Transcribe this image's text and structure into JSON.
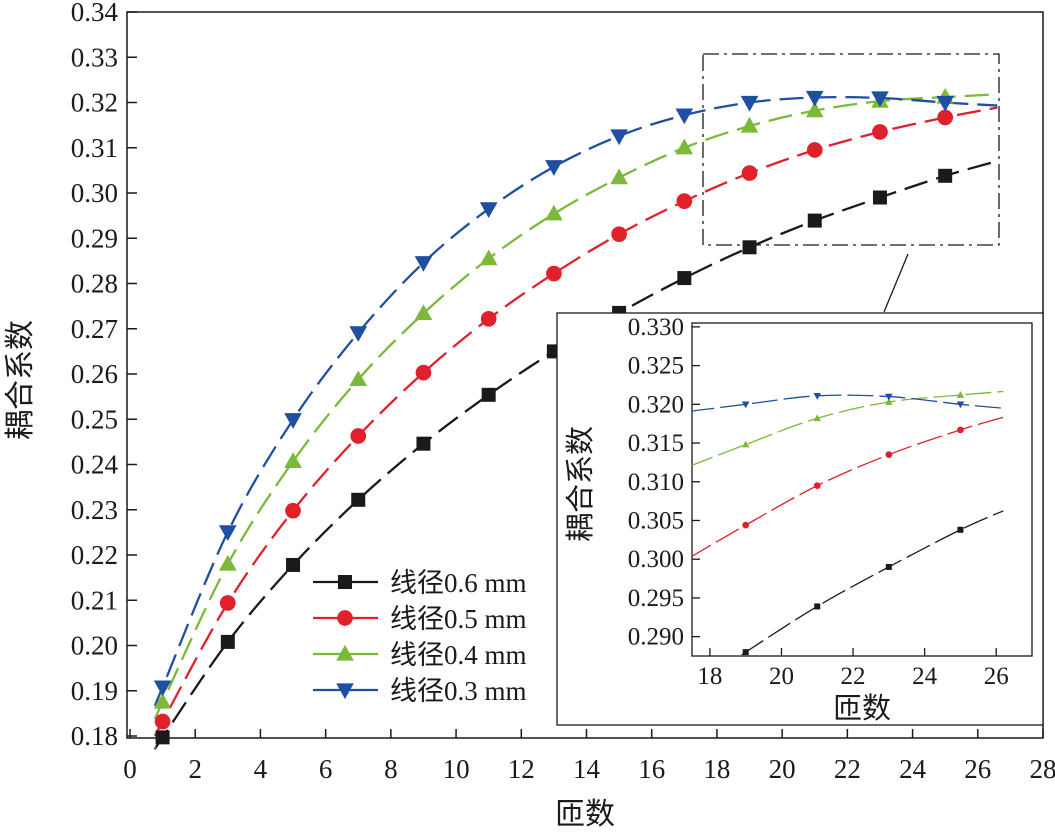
{
  "chart_data": [
    {
      "type": "line",
      "title": "",
      "xlabel": "匝数",
      "ylabel": "耦合系数",
      "xlim": [
        0,
        28
      ],
      "ylim": [
        0.18,
        0.34
      ],
      "xticks": [
        "0",
        "2",
        "4",
        "6",
        "8",
        "10",
        "12",
        "14",
        "16",
        "18",
        "20",
        "22",
        "24",
        "26",
        "28"
      ],
      "yticks": [
        "0.18",
        "0.19",
        "0.20",
        "0.21",
        "0.22",
        "0.23",
        "0.24",
        "0.25",
        "0.26",
        "0.27",
        "0.28",
        "0.29",
        "0.30",
        "0.31",
        "0.32",
        "0.33",
        "0.34"
      ],
      "legend_position": "center",
      "grid": false,
      "x": [
        1,
        3,
        5,
        7,
        9,
        11,
        13,
        15,
        17,
        19,
        21,
        23,
        25
      ],
      "series": [
        {
          "name": "线径0.6 mm",
          "color": "#1a1a1a",
          "marker": "square",
          "values": [
            0.1797,
            0.2008,
            0.2178,
            0.2322,
            0.2446,
            0.2554,
            0.265,
            0.2735,
            0.2812,
            0.288,
            0.2939,
            0.299,
            0.3038
          ]
        },
        {
          "name": "线径0.5 mm",
          "color": "#e0202a",
          "marker": "circle",
          "values": [
            0.1832,
            0.2094,
            0.2298,
            0.2463,
            0.2603,
            0.2722,
            0.2822,
            0.2909,
            0.2982,
            0.3044,
            0.3095,
            0.3135,
            0.3167
          ]
        },
        {
          "name": "线径0.4 mm",
          "color": "#7ab93a",
          "marker": "triangle-up",
          "values": [
            0.1875,
            0.218,
            0.2407,
            0.2588,
            0.2734,
            0.2855,
            0.2954,
            0.3034,
            0.31,
            0.3148,
            0.3182,
            0.3203,
            0.3212
          ]
        },
        {
          "name": "线径0.3 mm",
          "color": "#1f4fa0",
          "marker": "triangle-down",
          "values": [
            0.1908,
            0.2251,
            0.2499,
            0.2691,
            0.2846,
            0.2965,
            0.3058,
            0.3126,
            0.3172,
            0.32,
            0.3211,
            0.321,
            0.32
          ]
        }
      ]
    },
    {
      "type": "line",
      "title": "",
      "xlabel": "匝数",
      "ylabel": "耦合系数",
      "xlim": [
        17.5,
        27
      ],
      "ylim": [
        0.2875,
        0.3305
      ],
      "xticks": [
        "18",
        "20",
        "22",
        "24",
        "26"
      ],
      "yticks": [
        "0.290",
        "0.295",
        "0.300",
        "0.305",
        "0.310",
        "0.315",
        "0.320",
        "0.325",
        "0.330"
      ],
      "x": [
        19,
        21,
        23,
        25
      ],
      "series": [
        {
          "name": "线径0.6 mm",
          "values": [
            0.288,
            0.2939,
            0.299,
            0.3038
          ]
        },
        {
          "name": "线径0.5 mm",
          "values": [
            0.3044,
            0.3095,
            0.3135,
            0.3167
          ]
        },
        {
          "name": "线径0.4 mm",
          "values": [
            0.3148,
            0.3182,
            0.3203,
            0.3212
          ]
        },
        {
          "name": "线径0.3 mm",
          "values": [
            0.32,
            0.3211,
            0.321,
            0.32
          ]
        }
      ]
    }
  ]
}
